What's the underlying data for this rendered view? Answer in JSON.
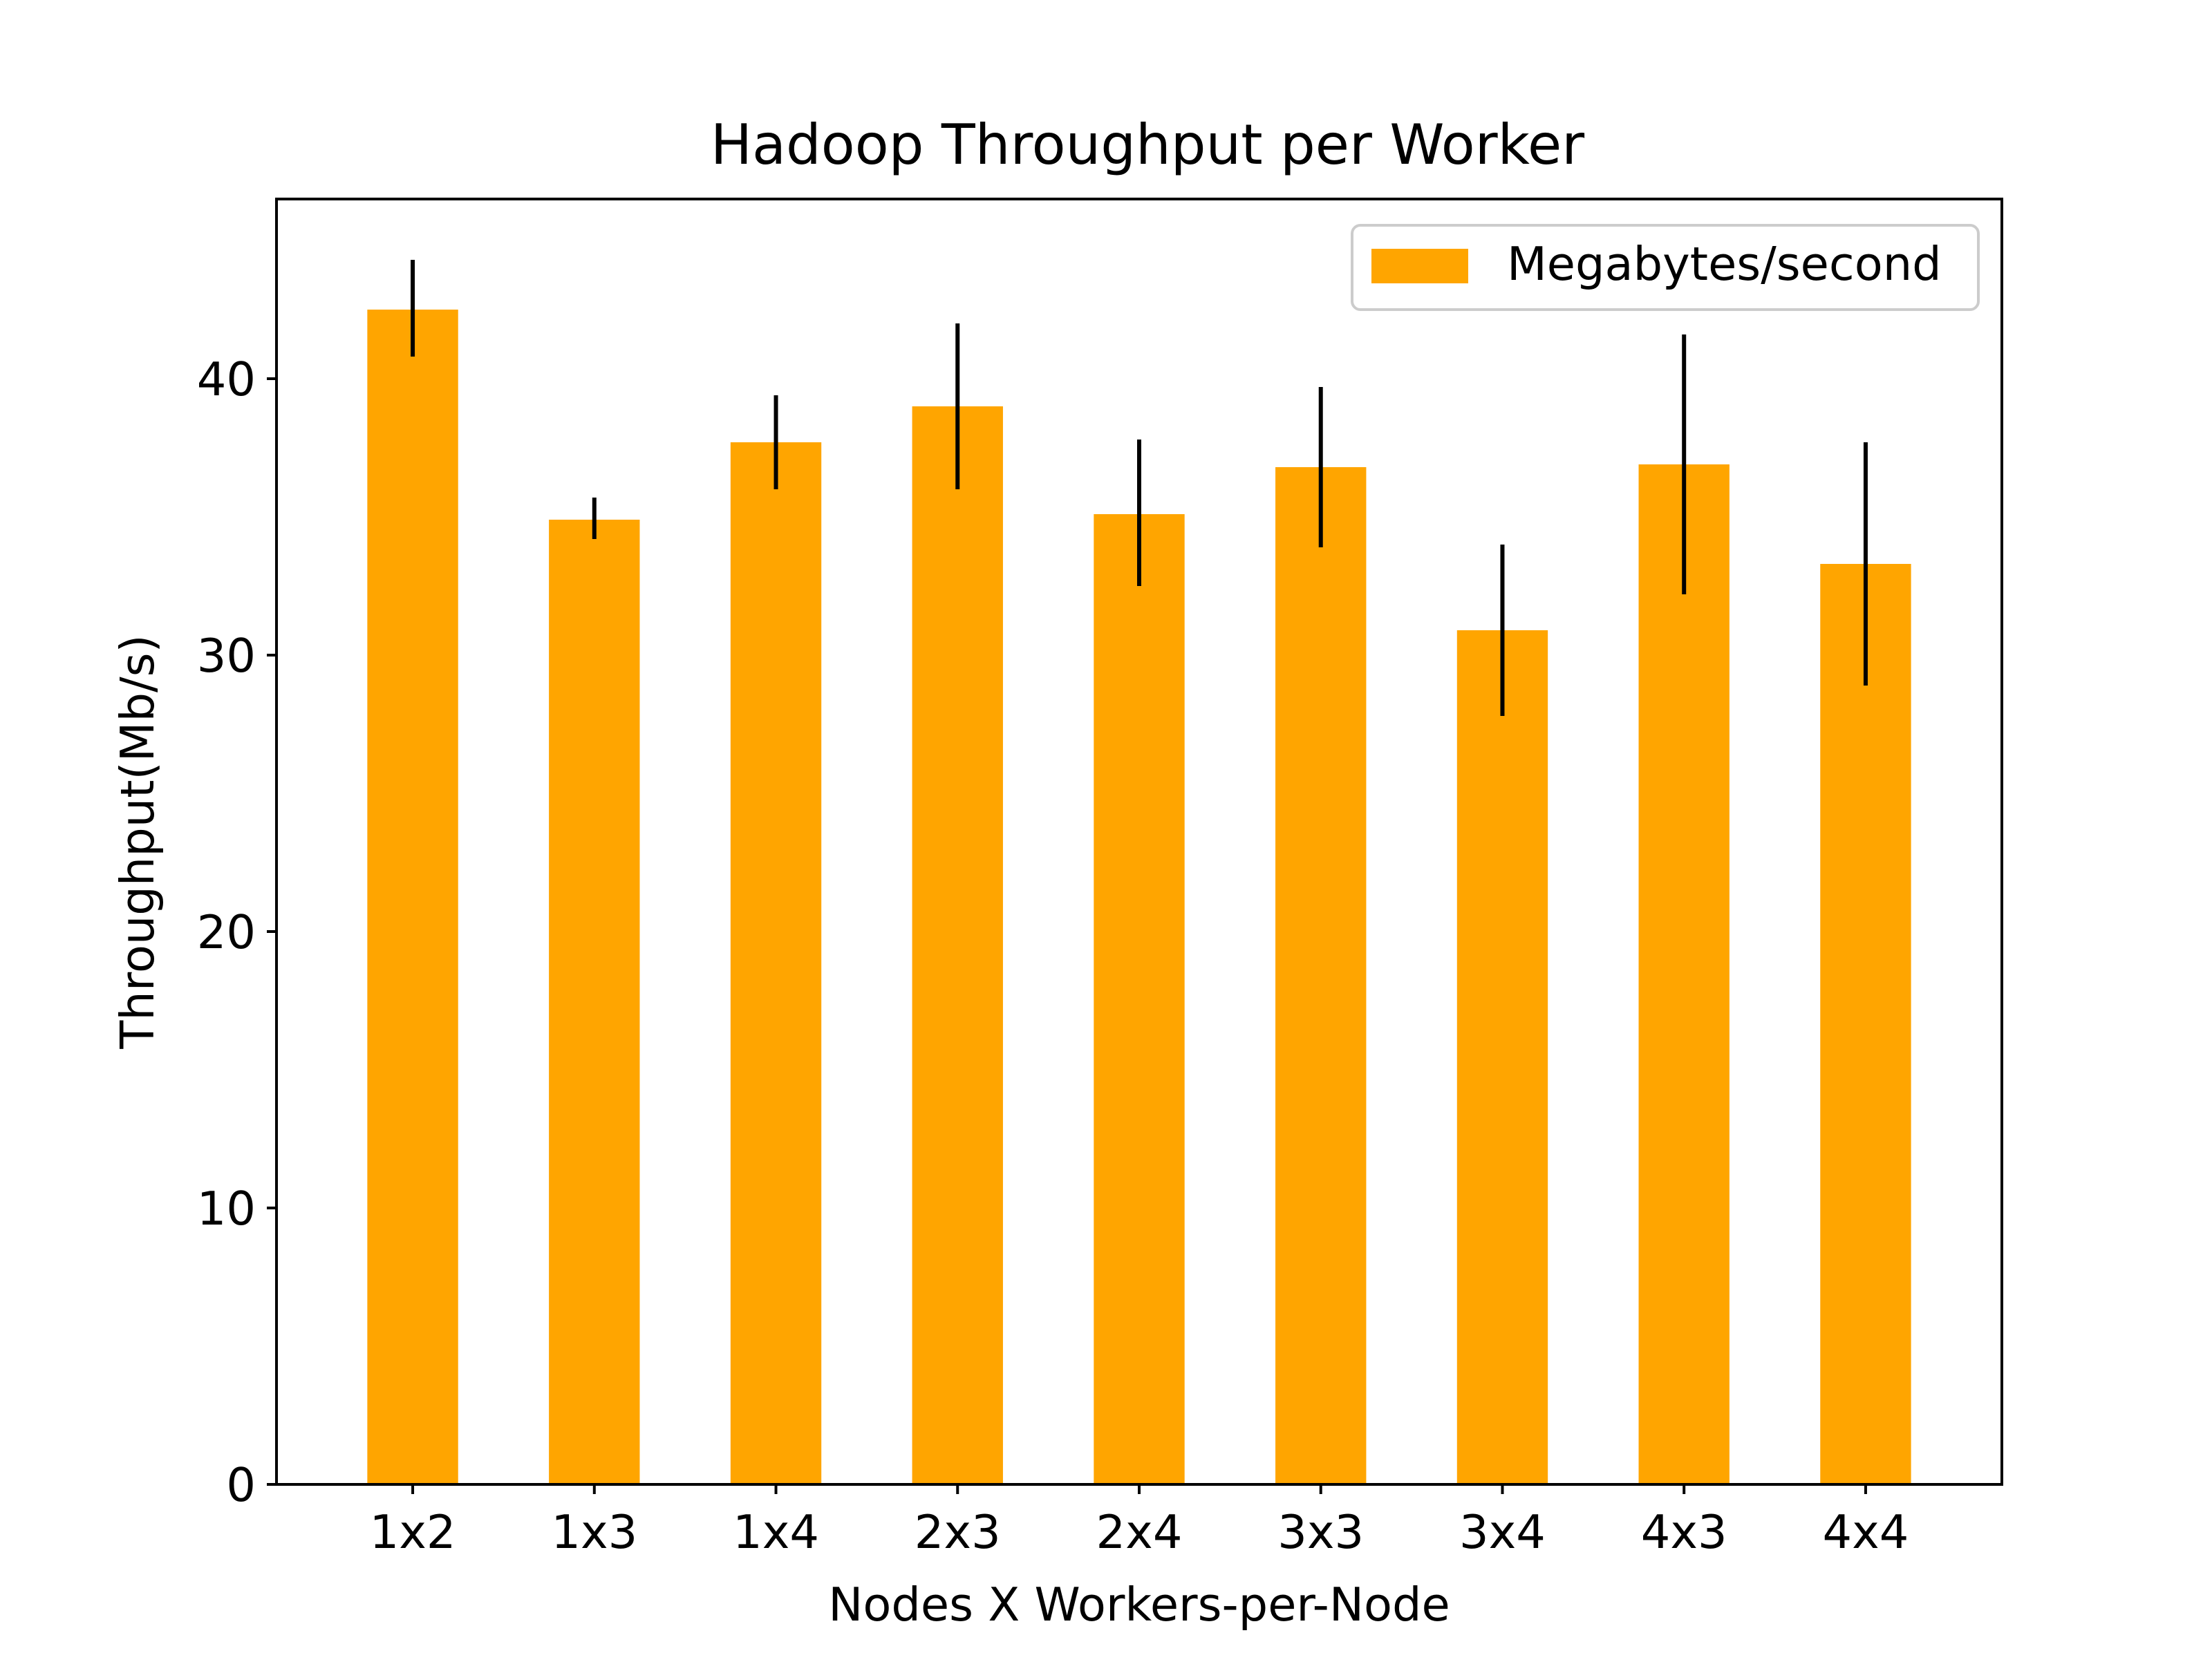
{
  "chart_data": {
    "type": "bar",
    "title": "Hadoop Throughput per Worker",
    "xlabel": "Nodes X Workers-per-Node",
    "ylabel": "Throughput(Mb/s)",
    "categories": [
      "1x2",
      "1x3",
      "1x4",
      "2x3",
      "2x4",
      "3x3",
      "3x4",
      "4x3",
      "4x4"
    ],
    "series": [
      {
        "name": "Megabytes/second",
        "values": [
          42.5,
          34.9,
          37.7,
          39.0,
          35.1,
          36.8,
          30.9,
          36.9,
          33.3
        ],
        "error_low": [
          40.8,
          34.2,
          36.0,
          36.0,
          32.5,
          33.9,
          27.8,
          32.2,
          28.9
        ],
        "error_high": [
          44.3,
          35.7,
          39.4,
          42.0,
          37.8,
          39.7,
          34.0,
          41.6,
          37.7
        ]
      }
    ],
    "yticks": [
      0,
      10,
      20,
      30,
      40
    ],
    "ylim": [
      0,
      46.5
    ],
    "grid": false,
    "legend_position": "top-right",
    "bar_color": "#ffa500",
    "error_color": "#000000"
  }
}
